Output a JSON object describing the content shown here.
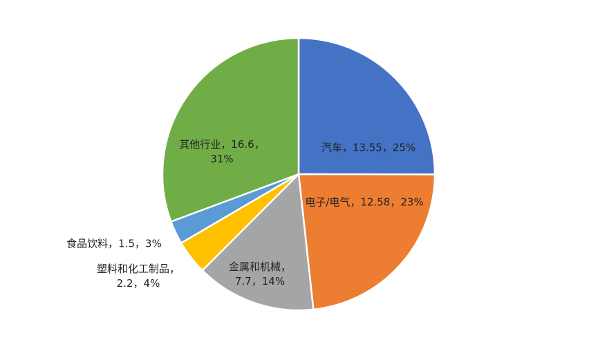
{
  "chart_data": {
    "type": "pie",
    "categories": [
      "汽车",
      "电子/电气",
      "金属和机械",
      "塑料和化工制品",
      "食品饮料",
      "其他行业"
    ],
    "values": [
      13.55,
      12.58,
      7.7,
      2.2,
      1.5,
      16.6
    ],
    "value_labels": [
      "汽车，13.55，25%",
      "电子/电气，12.58，23%",
      "金属和机械，7.7，14%",
      "塑料和化工制品，2.2，4%",
      "食品饮料，1.5，3%",
      "其他行业，16.6，31%"
    ],
    "colors": [
      "#4472c4",
      "#ed7d31",
      "#a5a5a5",
      "#ffc000",
      "#5b9bd5",
      "#70ad47"
    ]
  }
}
